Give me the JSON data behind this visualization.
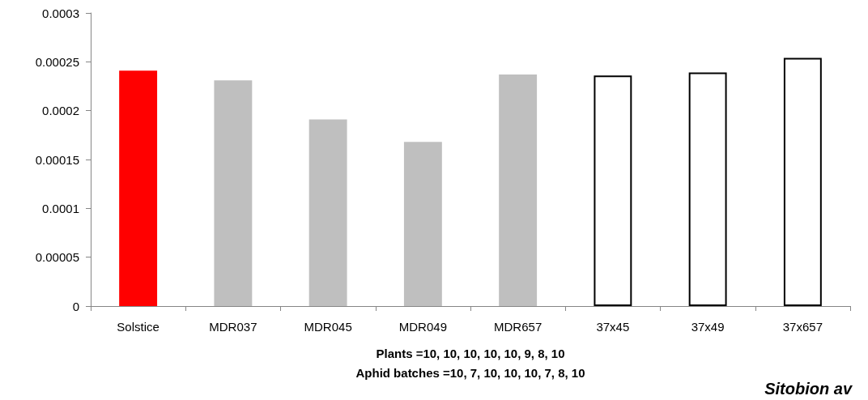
{
  "chart_data": {
    "type": "bar",
    "categories": [
      "Solstice",
      "MDR037",
      "MDR045",
      "MDR049",
      "MDR657",
      "37x45",
      "37x49",
      "37x657"
    ],
    "values": [
      0.000241,
      0.000231,
      0.000191,
      0.000168,
      0.000237,
      0.000236,
      0.000239,
      0.000254
    ],
    "colors": [
      "#ff0000",
      "#bfbfbf",
      "#bfbfbf",
      "#bfbfbf",
      "#bfbfbf",
      "#ffffff",
      "#ffffff",
      "#ffffff"
    ],
    "ylim": [
      0,
      0.0003
    ],
    "yticks": [
      0,
      {
        "value": 5e-05,
        "label": "0.00005"
      },
      0.0001,
      0.00015,
      0.0002,
      0.00025,
      0.0003
    ],
    "xlabel": "Plants =10, 10, 10, 10, 10, 9, 8, 10\nAphid batches =10, 7, 10, 10, 10, 7, 8, 10",
    "annotations": [
      "Sitobion av"
    ],
    "grid": false
  }
}
